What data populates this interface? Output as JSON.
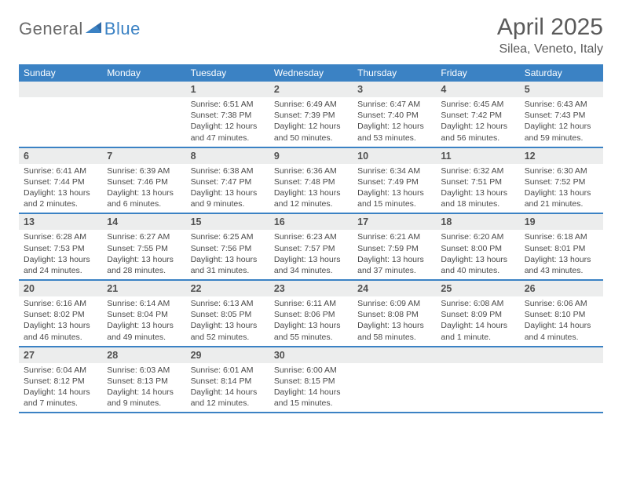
{
  "brand": {
    "part1": "General",
    "part2": "Blue"
  },
  "title": "April 2025",
  "location": "Silea, Veneto, Italy",
  "colors": {
    "accent": "#3b82c4",
    "header_text": "#5a5a5a",
    "daybar_bg": "#eceded",
    "cell_text": "#4a4a4a",
    "background": "#ffffff"
  },
  "days_of_week": [
    "Sunday",
    "Monday",
    "Tuesday",
    "Wednesday",
    "Thursday",
    "Friday",
    "Saturday"
  ],
  "weeks": [
    [
      {
        "n": "",
        "sr": "",
        "ss": "",
        "dl1": "",
        "dl2": ""
      },
      {
        "n": "",
        "sr": "",
        "ss": "",
        "dl1": "",
        "dl2": ""
      },
      {
        "n": "1",
        "sr": "Sunrise: 6:51 AM",
        "ss": "Sunset: 7:38 PM",
        "dl1": "Daylight: 12 hours",
        "dl2": "and 47 minutes."
      },
      {
        "n": "2",
        "sr": "Sunrise: 6:49 AM",
        "ss": "Sunset: 7:39 PM",
        "dl1": "Daylight: 12 hours",
        "dl2": "and 50 minutes."
      },
      {
        "n": "3",
        "sr": "Sunrise: 6:47 AM",
        "ss": "Sunset: 7:40 PM",
        "dl1": "Daylight: 12 hours",
        "dl2": "and 53 minutes."
      },
      {
        "n": "4",
        "sr": "Sunrise: 6:45 AM",
        "ss": "Sunset: 7:42 PM",
        "dl1": "Daylight: 12 hours",
        "dl2": "and 56 minutes."
      },
      {
        "n": "5",
        "sr": "Sunrise: 6:43 AM",
        "ss": "Sunset: 7:43 PM",
        "dl1": "Daylight: 12 hours",
        "dl2": "and 59 minutes."
      }
    ],
    [
      {
        "n": "6",
        "sr": "Sunrise: 6:41 AM",
        "ss": "Sunset: 7:44 PM",
        "dl1": "Daylight: 13 hours",
        "dl2": "and 2 minutes."
      },
      {
        "n": "7",
        "sr": "Sunrise: 6:39 AM",
        "ss": "Sunset: 7:46 PM",
        "dl1": "Daylight: 13 hours",
        "dl2": "and 6 minutes."
      },
      {
        "n": "8",
        "sr": "Sunrise: 6:38 AM",
        "ss": "Sunset: 7:47 PM",
        "dl1": "Daylight: 13 hours",
        "dl2": "and 9 minutes."
      },
      {
        "n": "9",
        "sr": "Sunrise: 6:36 AM",
        "ss": "Sunset: 7:48 PM",
        "dl1": "Daylight: 13 hours",
        "dl2": "and 12 minutes."
      },
      {
        "n": "10",
        "sr": "Sunrise: 6:34 AM",
        "ss": "Sunset: 7:49 PM",
        "dl1": "Daylight: 13 hours",
        "dl2": "and 15 minutes."
      },
      {
        "n": "11",
        "sr": "Sunrise: 6:32 AM",
        "ss": "Sunset: 7:51 PM",
        "dl1": "Daylight: 13 hours",
        "dl2": "and 18 minutes."
      },
      {
        "n": "12",
        "sr": "Sunrise: 6:30 AM",
        "ss": "Sunset: 7:52 PM",
        "dl1": "Daylight: 13 hours",
        "dl2": "and 21 minutes."
      }
    ],
    [
      {
        "n": "13",
        "sr": "Sunrise: 6:28 AM",
        "ss": "Sunset: 7:53 PM",
        "dl1": "Daylight: 13 hours",
        "dl2": "and 24 minutes."
      },
      {
        "n": "14",
        "sr": "Sunrise: 6:27 AM",
        "ss": "Sunset: 7:55 PM",
        "dl1": "Daylight: 13 hours",
        "dl2": "and 28 minutes."
      },
      {
        "n": "15",
        "sr": "Sunrise: 6:25 AM",
        "ss": "Sunset: 7:56 PM",
        "dl1": "Daylight: 13 hours",
        "dl2": "and 31 minutes."
      },
      {
        "n": "16",
        "sr": "Sunrise: 6:23 AM",
        "ss": "Sunset: 7:57 PM",
        "dl1": "Daylight: 13 hours",
        "dl2": "and 34 minutes."
      },
      {
        "n": "17",
        "sr": "Sunrise: 6:21 AM",
        "ss": "Sunset: 7:59 PM",
        "dl1": "Daylight: 13 hours",
        "dl2": "and 37 minutes."
      },
      {
        "n": "18",
        "sr": "Sunrise: 6:20 AM",
        "ss": "Sunset: 8:00 PM",
        "dl1": "Daylight: 13 hours",
        "dl2": "and 40 minutes."
      },
      {
        "n": "19",
        "sr": "Sunrise: 6:18 AM",
        "ss": "Sunset: 8:01 PM",
        "dl1": "Daylight: 13 hours",
        "dl2": "and 43 minutes."
      }
    ],
    [
      {
        "n": "20",
        "sr": "Sunrise: 6:16 AM",
        "ss": "Sunset: 8:02 PM",
        "dl1": "Daylight: 13 hours",
        "dl2": "and 46 minutes."
      },
      {
        "n": "21",
        "sr": "Sunrise: 6:14 AM",
        "ss": "Sunset: 8:04 PM",
        "dl1": "Daylight: 13 hours",
        "dl2": "and 49 minutes."
      },
      {
        "n": "22",
        "sr": "Sunrise: 6:13 AM",
        "ss": "Sunset: 8:05 PM",
        "dl1": "Daylight: 13 hours",
        "dl2": "and 52 minutes."
      },
      {
        "n": "23",
        "sr": "Sunrise: 6:11 AM",
        "ss": "Sunset: 8:06 PM",
        "dl1": "Daylight: 13 hours",
        "dl2": "and 55 minutes."
      },
      {
        "n": "24",
        "sr": "Sunrise: 6:09 AM",
        "ss": "Sunset: 8:08 PM",
        "dl1": "Daylight: 13 hours",
        "dl2": "and 58 minutes."
      },
      {
        "n": "25",
        "sr": "Sunrise: 6:08 AM",
        "ss": "Sunset: 8:09 PM",
        "dl1": "Daylight: 14 hours",
        "dl2": "and 1 minute."
      },
      {
        "n": "26",
        "sr": "Sunrise: 6:06 AM",
        "ss": "Sunset: 8:10 PM",
        "dl1": "Daylight: 14 hours",
        "dl2": "and 4 minutes."
      }
    ],
    [
      {
        "n": "27",
        "sr": "Sunrise: 6:04 AM",
        "ss": "Sunset: 8:12 PM",
        "dl1": "Daylight: 14 hours",
        "dl2": "and 7 minutes."
      },
      {
        "n": "28",
        "sr": "Sunrise: 6:03 AM",
        "ss": "Sunset: 8:13 PM",
        "dl1": "Daylight: 14 hours",
        "dl2": "and 9 minutes."
      },
      {
        "n": "29",
        "sr": "Sunrise: 6:01 AM",
        "ss": "Sunset: 8:14 PM",
        "dl1": "Daylight: 14 hours",
        "dl2": "and 12 minutes."
      },
      {
        "n": "30",
        "sr": "Sunrise: 6:00 AM",
        "ss": "Sunset: 8:15 PM",
        "dl1": "Daylight: 14 hours",
        "dl2": "and 15 minutes."
      },
      {
        "n": "",
        "sr": "",
        "ss": "",
        "dl1": "",
        "dl2": ""
      },
      {
        "n": "",
        "sr": "",
        "ss": "",
        "dl1": "",
        "dl2": ""
      },
      {
        "n": "",
        "sr": "",
        "ss": "",
        "dl1": "",
        "dl2": ""
      }
    ]
  ]
}
